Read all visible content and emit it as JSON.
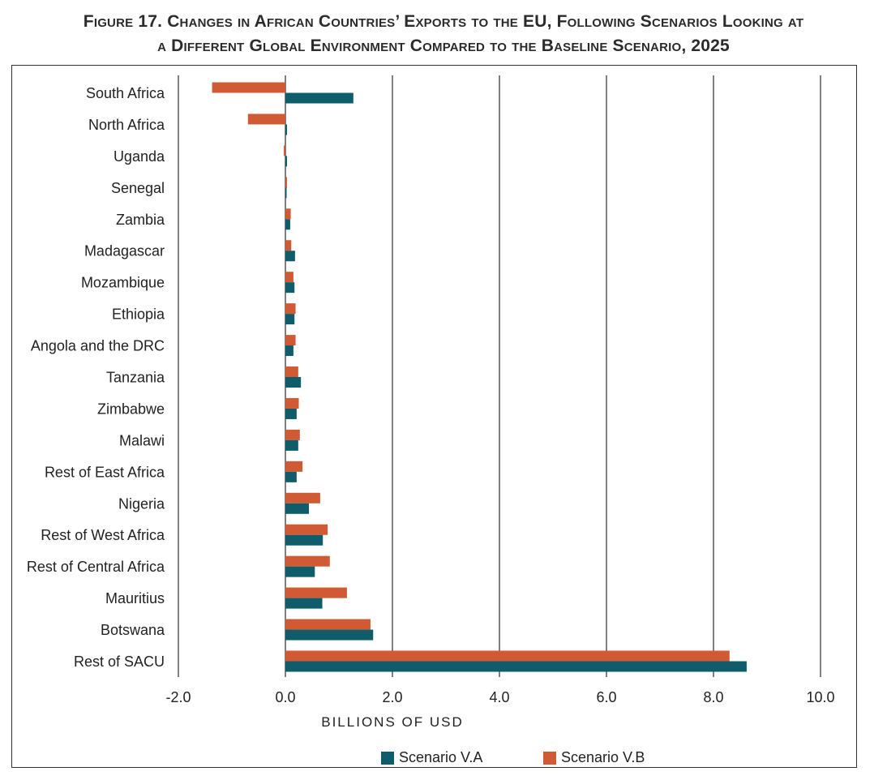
{
  "title": {
    "line1": "Figure 17. Changes in African Countries’ Exports to the EU, Following Scenarios Looking at",
    "line2": "a Different Global Environment Compared to the Baseline Scenario, 2025"
  },
  "colors": {
    "series_a": "#0f5c6b",
    "series_b": "#cf5a34",
    "grid": "#000000"
  },
  "chart_data": {
    "type": "bar",
    "orientation": "horizontal",
    "title": "Figure 17. Changes in African Countries’ Exports to the EU, Following Scenarios Looking at a Different Global Environment Compared to the Baseline Scenario, 2025",
    "xlabel": "BILLIONS OF USD",
    "ylabel": "",
    "xlim": [
      -2.0,
      10.0
    ],
    "xticks": [
      "-2.0",
      "0.0",
      "2.0",
      "4.0",
      "6.0",
      "8.0",
      "10.0"
    ],
    "grid": "vertical lines at ticks",
    "legend": "bottom",
    "categories": [
      "South Africa",
      "North Africa",
      "Uganda",
      "Senegal",
      "Zambia",
      "Madagascar",
      "Mozambique",
      "Ethiopia",
      "Angola and the DRC",
      "Tanzania",
      "Zimbabwe",
      "Malawi",
      "Rest of East Africa",
      "Nigeria",
      "Rest of West Africa",
      "Rest of Central Africa",
      "Mauritius",
      "Botswana",
      "Rest of SACU"
    ],
    "series": [
      {
        "name": "Scenario V.A",
        "values": [
          1.27,
          0.03,
          0.03,
          0.02,
          0.09,
          0.18,
          0.17,
          0.17,
          0.15,
          0.29,
          0.21,
          0.24,
          0.21,
          0.44,
          0.7,
          0.55,
          0.69,
          1.64,
          8.62
        ]
      },
      {
        "name": "Scenario V.B",
        "values": [
          -1.37,
          -0.7,
          -0.03,
          0.03,
          0.1,
          0.11,
          0.15,
          0.19,
          0.19,
          0.24,
          0.25,
          0.27,
          0.32,
          0.65,
          0.79,
          0.83,
          1.15,
          1.59,
          8.3
        ]
      }
    ]
  }
}
